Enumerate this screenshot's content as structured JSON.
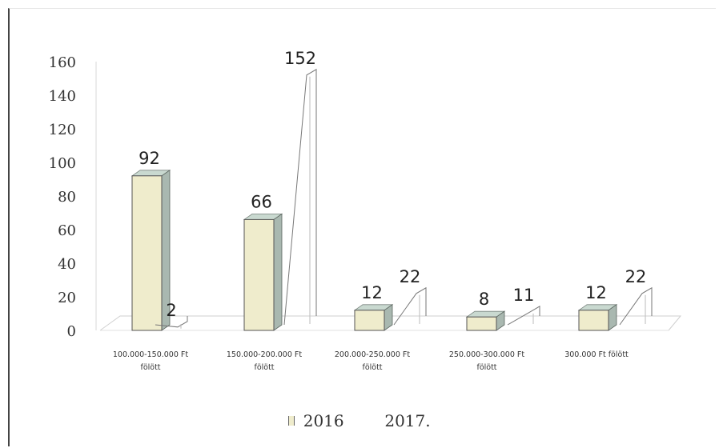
{
  "chart_data": {
    "type": "bar",
    "categories": [
      [
        "100.000-150.000 Ft",
        "fölött"
      ],
      [
        "150.000-200.000 Ft",
        "fölött"
      ],
      [
        "200.000-250.000 Ft",
        "fölött"
      ],
      [
        "250.000-300.000 Ft",
        "fölött"
      ],
      [
        "300.000 Ft fölött"
      ]
    ],
    "series": [
      {
        "name": "2016",
        "values": [
          92,
          66,
          12,
          8,
          12
        ]
      },
      {
        "name": "2017.",
        "values": [
          2,
          152,
          22,
          11,
          22
        ]
      }
    ],
    "y_ticks": [
      "0",
      "20",
      "40",
      "60",
      "80",
      "100",
      "120",
      "140",
      "160"
    ],
    "ylim": [
      0,
      160
    ],
    "title": "",
    "xlabel": "",
    "ylabel": "",
    "legend_position": "bottom",
    "grid": false,
    "colors": {
      "series_2016_fill": "#efeccc",
      "series_2016_top": "#c9d9d0",
      "series_2016_side": "#a9b8b0",
      "series_2017_line": "#777777"
    }
  }
}
